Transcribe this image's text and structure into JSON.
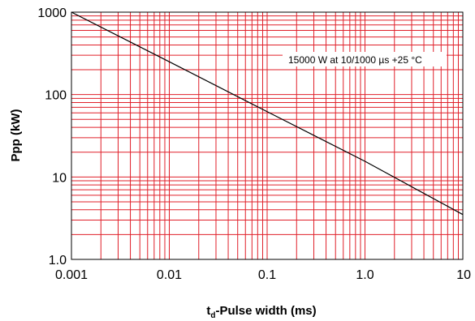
{
  "chart_data": {
    "type": "line",
    "title": "",
    "xlabel_main": "t",
    "xlabel_sub": "d",
    "xlabel_rest": "-Pulse width (ms)",
    "ylabel": "Ppp (kW)",
    "x_scale": "log",
    "y_scale": "log",
    "xlim": [
      0.001,
      10
    ],
    "ylim": [
      1,
      1000
    ],
    "x_tick_labels": [
      "0.001",
      "0.01",
      "0.1",
      "1.0",
      "10"
    ],
    "x_tick_values": [
      0.001,
      0.01,
      0.1,
      1,
      10
    ],
    "y_tick_labels": [
      "1.0",
      "10",
      "100",
      "1000"
    ],
    "y_tick_values": [
      1,
      10,
      100,
      1000
    ],
    "grid": true,
    "grid_color": "#e0202a",
    "line_color": "#000000",
    "annotation": "15000 W at 10/1000 µs +25 °C",
    "series": [
      {
        "x": [
          0.001,
          0.01,
          0.1,
          1,
          10
        ],
        "y": [
          1000,
          250,
          62,
          15.5,
          3.5
        ]
      }
    ]
  }
}
